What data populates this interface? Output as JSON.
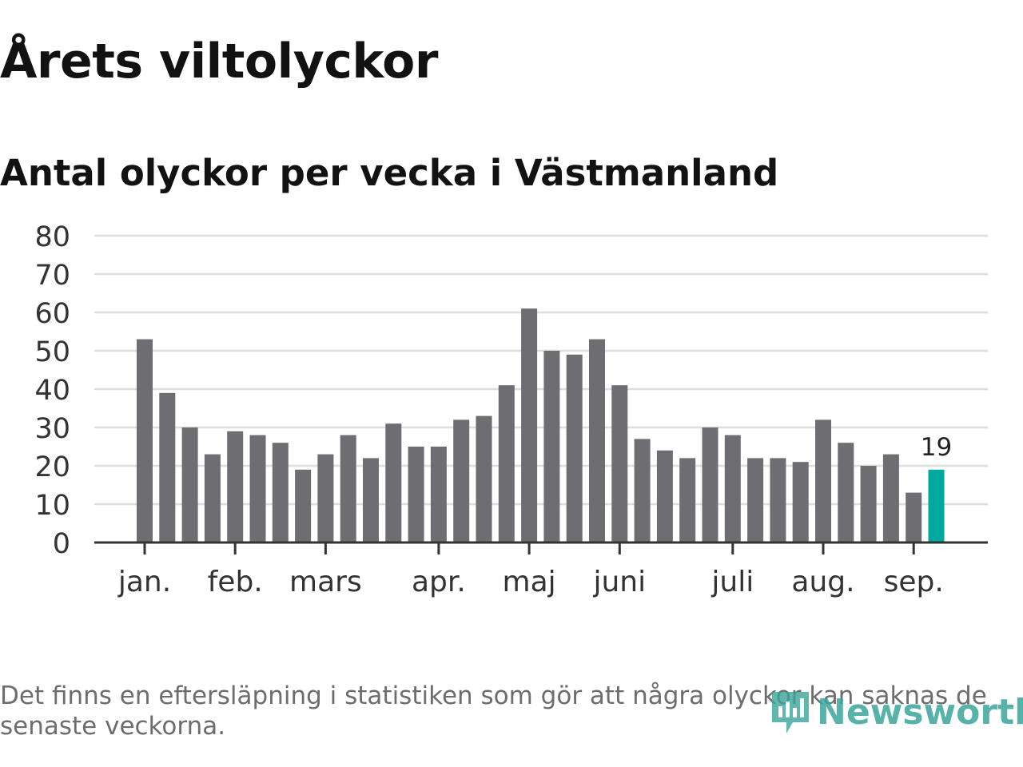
{
  "header": {
    "title": "Årets viltolyckor",
    "subtitle": "Antal olyckor per vecka i Västmanland"
  },
  "footer": {
    "note": "Det finns en eftersläpning i statistiken som gör att några olyckor kan saknas de senaste veckorna.",
    "brand": "Newsworthy"
  },
  "icons": {
    "logo": "newsworthy-logo-icon"
  },
  "chart_data": {
    "type": "bar",
    "title": "Antal olyckor per vecka i Västmanland",
    "xlabel": "",
    "ylabel": "",
    "ylim": [
      0,
      80
    ],
    "yticks": [
      0,
      10,
      20,
      30,
      40,
      50,
      60,
      70,
      80
    ],
    "grid": true,
    "values": [
      53,
      39,
      30,
      23,
      29,
      28,
      26,
      19,
      23,
      28,
      22,
      31,
      25,
      25,
      32,
      33,
      41,
      61,
      50,
      49,
      53,
      41,
      27,
      24,
      22,
      30,
      28,
      22,
      22,
      21,
      32,
      26,
      20,
      23,
      13,
      19
    ],
    "month_labels": [
      {
        "label": "jan.",
        "week_index": 0
      },
      {
        "label": "feb.",
        "week_index": 4
      },
      {
        "label": "mars",
        "week_index": 8
      },
      {
        "label": "apr.",
        "week_index": 13
      },
      {
        "label": "maj",
        "week_index": 17
      },
      {
        "label": "juni",
        "week_index": 21
      },
      {
        "label": "juli",
        "week_index": 26
      },
      {
        "label": "aug.",
        "week_index": 30
      },
      {
        "label": "sep.",
        "week_index": 34
      }
    ],
    "highlight": {
      "week_index": 35,
      "label": "19"
    },
    "colors": {
      "bar": "#6e6d72",
      "highlight": "#00a99d",
      "grid": "#dedede",
      "axis": "#333333"
    }
  }
}
